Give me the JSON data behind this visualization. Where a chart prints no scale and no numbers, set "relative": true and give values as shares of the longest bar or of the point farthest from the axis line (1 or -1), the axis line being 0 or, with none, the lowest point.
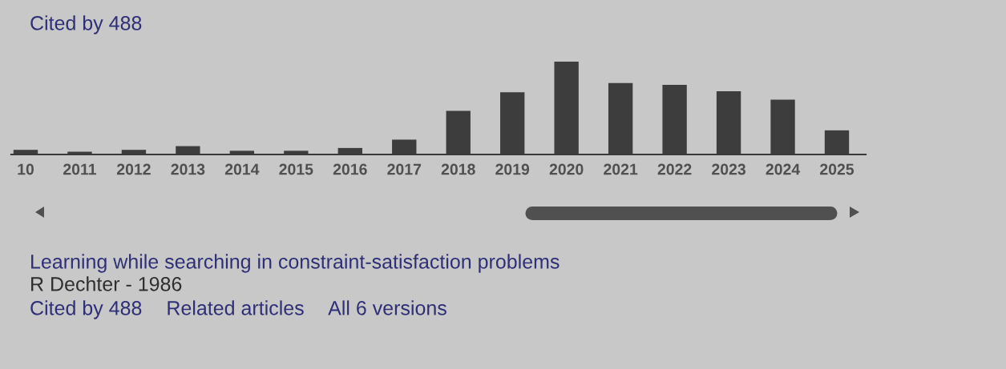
{
  "chart_data": {
    "type": "bar",
    "title": "Cited by 488",
    "categories": [
      "10",
      "2011",
      "2012",
      "2013",
      "2014",
      "2015",
      "2016",
      "2017",
      "2018",
      "2019",
      "2020",
      "2021",
      "2022",
      "2023",
      "2024",
      "2025"
    ],
    "values": [
      0.05,
      0.03,
      0.05,
      0.09,
      0.04,
      0.04,
      0.07,
      0.16,
      0.47,
      0.67,
      1.0,
      0.77,
      0.75,
      0.68,
      0.59,
      0.26
    ],
    "color": "#3d3d3d",
    "relative": true,
    "annotations": [
      "Learning while searching in constraint-satisfaction problems",
      "R Dechter - 1986",
      "Cited by 488",
      "Related articles",
      "All 6 versions"
    ]
  }
}
